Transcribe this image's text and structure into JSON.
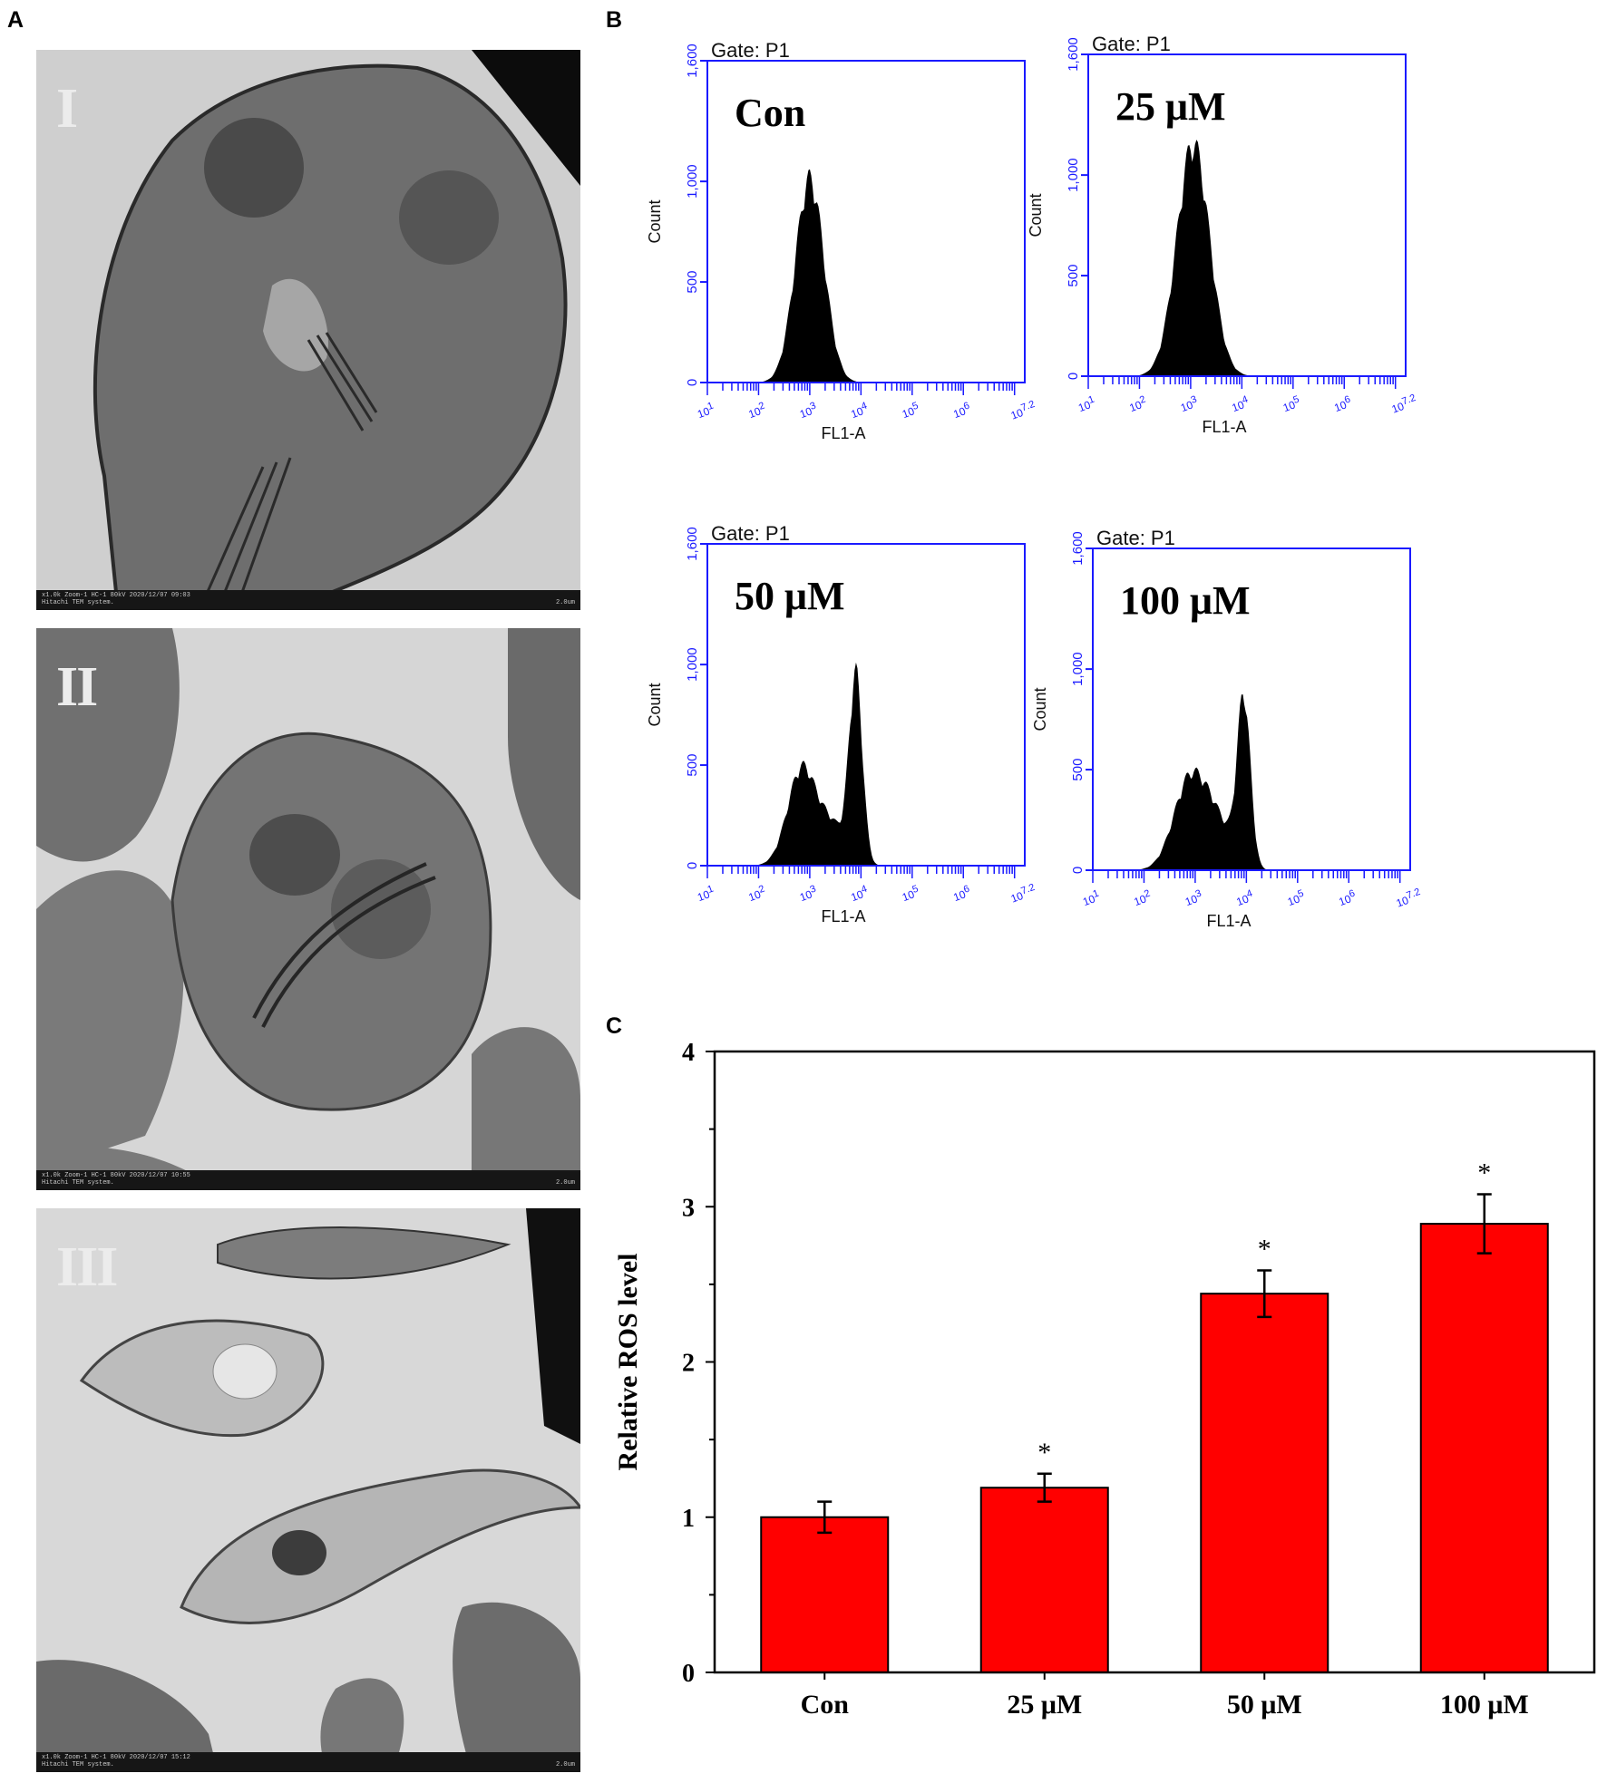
{
  "panels": {
    "a": "A",
    "b": "B",
    "c": "C"
  },
  "tem": [
    {
      "numeral": "I",
      "caption": "x1.0k Zoom-1 HC-1 80kV 2020/12/07 09:03\nHitachi TEM system.",
      "scale": "2.0um"
    },
    {
      "numeral": "II",
      "caption": "x1.0k Zoom-1 HC-1 80kV 2020/12/07 10:55\nHitachi TEM system.",
      "scale": "2.0um"
    },
    {
      "numeral": "III",
      "caption": "x1.0k Zoom-1 HC-1 80kV 2020/12/07 15:12\nHitachi TEM system.",
      "scale": "2.0um"
    }
  ],
  "histograms": [
    {
      "label": "Con",
      "gate": "Gate: P1",
      "ylabel": "Count",
      "xlabel": "FL1-A",
      "ylim": [
        0,
        1600
      ],
      "yticks": [
        "0",
        "500",
        "1,000",
        "1,600"
      ],
      "xticks": [
        "10^1",
        "10^2",
        "10^3",
        "10^4",
        "10^5",
        "10^6",
        "10^7.2"
      ],
      "peaks": [
        {
          "log": 3.0,
          "height": 1000,
          "width": 0.28
        }
      ]
    },
    {
      "label": "25 μM",
      "gate": "Gate: P1",
      "ylabel": "Count",
      "xlabel": "FL1-A",
      "ylim": [
        0,
        1600
      ],
      "yticks": [
        "0",
        "500",
        "1,000",
        "1,600"
      ],
      "xticks": [
        "10^1",
        "10^2",
        "10^3",
        "10^4",
        "10^5",
        "10^6",
        "10^7.2"
      ],
      "peaks": [
        {
          "log": 3.05,
          "height": 1140,
          "width": 0.32
        }
      ]
    },
    {
      "label": "50 μM",
      "gate": "Gate: P1",
      "ylabel": "Count",
      "xlabel": "FL1-A",
      "ylim": [
        0,
        1600
      ],
      "yticks": [
        "0",
        "500",
        "1,000",
        "1,600"
      ],
      "xticks": [
        "10^1",
        "10^2",
        "10^3",
        "10^4",
        "10^5",
        "10^6",
        "10^7.2"
      ],
      "peaks": [
        {
          "log": 2.85,
          "height": 480,
          "width": 0.28
        },
        {
          "log": 3.9,
          "height": 920,
          "width": 0.13
        },
        {
          "log": 3.45,
          "height": 180,
          "width": 0.25
        }
      ]
    },
    {
      "label": "100 μM",
      "gate": "Gate: P1",
      "ylabel": "Count",
      "xlabel": "FL1-A",
      "ylim": [
        0,
        1600
      ],
      "yticks": [
        "0",
        "500",
        "1,000",
        "1,600"
      ],
      "xticks": [
        "10^1",
        "10^2",
        "10^3",
        "10^4",
        "10^5",
        "10^6",
        "10^7.2"
      ],
      "peaks": [
        {
          "log": 2.9,
          "height": 440,
          "width": 0.32
        },
        {
          "log": 3.95,
          "height": 820,
          "width": 0.13
        },
        {
          "log": 3.45,
          "height": 200,
          "width": 0.3
        }
      ]
    }
  ],
  "chart_data": {
    "type": "bar",
    "categories": [
      "Con",
      "25 μM",
      "50 μM",
      "100 μM"
    ],
    "values": [
      1.0,
      1.19,
      2.44,
      2.89
    ],
    "errors": [
      0.1,
      0.09,
      0.15,
      0.19
    ],
    "significance": [
      "",
      "*",
      "*",
      "*"
    ],
    "ylabel": "Relative ROS level",
    "xlabel": "",
    "ylim": [
      0,
      4
    ],
    "yticks": [
      0,
      1,
      2,
      3,
      4
    ],
    "bar_color": "#ff0000",
    "grid": false
  },
  "colors": {
    "flow_axis": "#1a1aff",
    "histogram_fill": "#000000",
    "bar_fill": "#ff0000"
  }
}
